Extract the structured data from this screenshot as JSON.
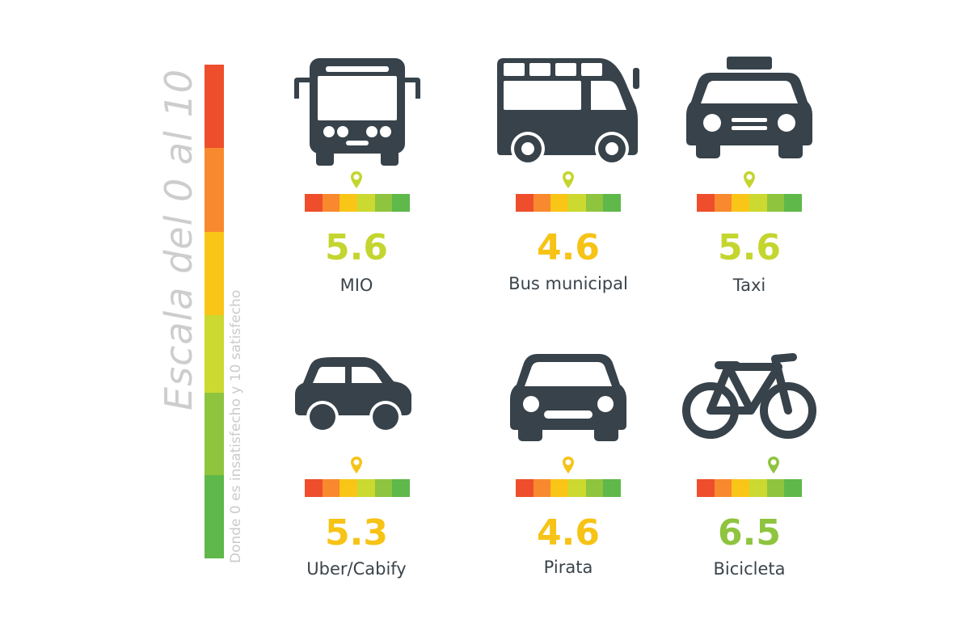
{
  "scale": {
    "title": "Escala del 0 al 10",
    "subtitle": "Donde 0 es insatisfecho y 10 satisfecho",
    "colors": [
      "#ee4e2b",
      "#f9892e",
      "#f9c517",
      "#cbd930",
      "#8fc43f",
      "#5fb84a"
    ]
  },
  "icon_color": "#37424a",
  "score_colors": {
    "yellow_green": "#c4d52f",
    "yellow": "#f6c316",
    "green": "#8fc43f"
  },
  "modes": [
    {
      "id": "mio",
      "label": "MIO",
      "score": "5.6",
      "score_value": 5.6,
      "icon": "bus-front-icon",
      "color": "#c4d52f"
    },
    {
      "id": "bus-municipal",
      "label": "Bus municipal",
      "score": "4.6",
      "score_value": 4.6,
      "icon": "minibus-side-icon",
      "color": "#f6c316"
    },
    {
      "id": "taxi",
      "label": "Taxi",
      "score": "5.6",
      "score_value": 5.6,
      "icon": "taxi-front-icon",
      "color": "#c4d52f"
    },
    {
      "id": "uber-cabify",
      "label": "Uber/Cabify",
      "score": "5.3",
      "score_value": 5.3,
      "icon": "car-side-icon",
      "color": "#f6c316"
    },
    {
      "id": "pirata",
      "label": "Pirata",
      "score": "4.6",
      "score_value": 4.6,
      "icon": "car-front-icon",
      "color": "#f6c316"
    },
    {
      "id": "bicicleta",
      "label": "Bicicleta",
      "score": "6.5",
      "score_value": 6.5,
      "icon": "bicycle-icon",
      "color": "#8fc43f"
    }
  ]
}
